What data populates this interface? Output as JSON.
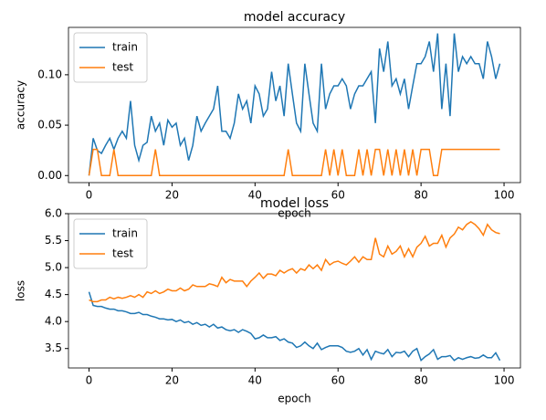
{
  "chart_data": [
    {
      "type": "line",
      "title": "model accuracy",
      "xlabel": "epoch",
      "ylabel": "accuracy",
      "x": [
        0,
        1,
        2,
        3,
        4,
        5,
        6,
        7,
        8,
        9,
        10,
        11,
        12,
        13,
        14,
        15,
        16,
        17,
        18,
        19,
        20,
        21,
        22,
        23,
        24,
        25,
        26,
        27,
        28,
        29,
        30,
        31,
        32,
        33,
        34,
        35,
        36,
        37,
        38,
        39,
        40,
        41,
        42,
        43,
        44,
        45,
        46,
        47,
        48,
        49,
        50,
        51,
        52,
        53,
        54,
        55,
        56,
        57,
        58,
        59,
        60,
        61,
        62,
        63,
        64,
        65,
        66,
        67,
        68,
        69,
        70,
        71,
        72,
        73,
        74,
        75,
        76,
        77,
        78,
        79,
        80,
        81,
        82,
        83,
        84,
        85,
        86,
        87,
        88,
        89,
        90,
        91,
        92,
        93,
        94,
        95,
        96,
        97,
        98,
        99
      ],
      "series": [
        {
          "name": "train",
          "color": "#1f77b4",
          "values": [
            0,
            0.037,
            0.025,
            0.022,
            0.03,
            0.037,
            0.026,
            0.037,
            0.044,
            0.037,
            0.074,
            0.03,
            0.015,
            0.03,
            0.033,
            0.059,
            0.044,
            0.052,
            0.03,
            0.055,
            0.048,
            0.052,
            0.03,
            0.037,
            0.015,
            0.03,
            0.059,
            0.044,
            0.052,
            0.059,
            0.066,
            0.089,
            0.044,
            0.044,
            0.037,
            0.052,
            0.081,
            0.066,
            0.074,
            0.052,
            0.089,
            0.081,
            0.059,
            0.066,
            0.103,
            0.074,
            0.089,
            0.059,
            0.111,
            0.081,
            0.052,
            0.044,
            0.111,
            0.081,
            0.052,
            0.044,
            0.111,
            0.066,
            0.081,
            0.089,
            0.089,
            0.096,
            0.089,
            0.066,
            0.081,
            0.089,
            0.089,
            0.096,
            0.103,
            0.052,
            0.126,
            0.103,
            0.133,
            0.089,
            0.096,
            0.081,
            0.096,
            0.066,
            0.089,
            0.111,
            0.111,
            0.118,
            0.133,
            0.103,
            0.141,
            0.066,
            0.111,
            0.059,
            0.141,
            0.103,
            0.118,
            0.111,
            0.118,
            0.111,
            0.111,
            0.096,
            0.133,
            0.118,
            0.096,
            0.111
          ]
        },
        {
          "name": "test",
          "color": "#ff7f0e",
          "values": [
            0,
            0.026,
            0.026,
            0,
            0,
            0,
            0.026,
            0,
            0,
            0,
            0,
            0,
            0,
            0,
            0,
            0,
            0.026,
            0,
            0,
            0,
            0,
            0,
            0,
            0,
            0,
            0,
            0,
            0,
            0,
            0,
            0,
            0,
            0,
            0,
            0,
            0,
            0,
            0,
            0,
            0,
            0,
            0,
            0,
            0,
            0,
            0,
            0,
            0,
            0.026,
            0,
            0,
            0,
            0,
            0,
            0,
            0,
            0,
            0.026,
            0,
            0.026,
            0,
            0.026,
            0,
            0,
            0,
            0.026,
            0,
            0.026,
            0,
            0.026,
            0.026,
            0,
            0.026,
            0,
            0.026,
            0,
            0.026,
            0,
            0.026,
            0,
            0.026,
            0.026,
            0.026,
            0,
            0,
            0.026,
            0.026,
            0.026,
            0.026,
            0.026,
            0.026,
            0.026,
            0.026,
            0.026,
            0.026,
            0.026,
            0.026,
            0.026,
            0.026,
            0.026
          ]
        }
      ],
      "xlim": [
        -4.95,
        103.95
      ],
      "xticks": [
        0,
        20,
        40,
        60,
        80,
        100
      ],
      "ylim": [
        -0.007,
        0.147
      ],
      "yticks": [
        {
          "value": 0,
          "label": "0.00"
        },
        {
          "value": 0.05,
          "label": "0.05"
        },
        {
          "value": 0.1,
          "label": "0.10"
        }
      ],
      "legend": "upper left"
    },
    {
      "type": "line",
      "title": "model loss",
      "xlabel": "epoch",
      "ylabel": "loss",
      "x": [
        0,
        1,
        2,
        3,
        4,
        5,
        6,
        7,
        8,
        9,
        10,
        11,
        12,
        13,
        14,
        15,
        16,
        17,
        18,
        19,
        20,
        21,
        22,
        23,
        24,
        25,
        26,
        27,
        28,
        29,
        30,
        31,
        32,
        33,
        34,
        35,
        36,
        37,
        38,
        39,
        40,
        41,
        42,
        43,
        44,
        45,
        46,
        47,
        48,
        49,
        50,
        51,
        52,
        53,
        54,
        55,
        56,
        57,
        58,
        59,
        60,
        61,
        62,
        63,
        64,
        65,
        66,
        67,
        68,
        69,
        70,
        71,
        72,
        73,
        74,
        75,
        76,
        77,
        78,
        79,
        80,
        81,
        82,
        83,
        84,
        85,
        86,
        87,
        88,
        89,
        90,
        91,
        92,
        93,
        94,
        95,
        96,
        97,
        98,
        99
      ],
      "series": [
        {
          "name": "train",
          "color": "#1f77b4",
          "values": [
            4.55,
            4.3,
            4.28,
            4.28,
            4.25,
            4.23,
            4.23,
            4.2,
            4.2,
            4.18,
            4.15,
            4.15,
            4.17,
            4.13,
            4.13,
            4.1,
            4.08,
            4.05,
            4.05,
            4.03,
            4.04,
            4.0,
            4.03,
            3.98,
            4.0,
            3.95,
            3.98,
            3.93,
            3.95,
            3.9,
            3.95,
            3.88,
            3.9,
            3.85,
            3.83,
            3.85,
            3.8,
            3.85,
            3.82,
            3.78,
            3.68,
            3.7,
            3.75,
            3.7,
            3.7,
            3.72,
            3.65,
            3.68,
            3.62,
            3.6,
            3.52,
            3.55,
            3.62,
            3.55,
            3.5,
            3.6,
            3.48,
            3.52,
            3.55,
            3.55,
            3.55,
            3.52,
            3.45,
            3.43,
            3.45,
            3.5,
            3.38,
            3.48,
            3.3,
            3.45,
            3.42,
            3.4,
            3.48,
            3.35,
            3.43,
            3.42,
            3.45,
            3.35,
            3.45,
            3.5,
            3.28,
            3.35,
            3.4,
            3.48,
            3.3,
            3.35,
            3.35,
            3.37,
            3.28,
            3.33,
            3.3,
            3.33,
            3.35,
            3.32,
            3.33,
            3.38,
            3.33,
            3.33,
            3.42,
            3.28
          ]
        },
        {
          "name": "test",
          "color": "#ff7f0e",
          "values": [
            4.4,
            4.37,
            4.37,
            4.4,
            4.4,
            4.45,
            4.42,
            4.45,
            4.43,
            4.45,
            4.48,
            4.45,
            4.5,
            4.45,
            4.55,
            4.52,
            4.57,
            4.52,
            4.55,
            4.6,
            4.57,
            4.57,
            4.62,
            4.57,
            4.6,
            4.68,
            4.65,
            4.65,
            4.65,
            4.7,
            4.68,
            4.65,
            4.82,
            4.72,
            4.78,
            4.75,
            4.75,
            4.75,
            4.65,
            4.75,
            4.82,
            4.9,
            4.8,
            4.88,
            4.88,
            4.85,
            4.95,
            4.9,
            4.95,
            4.98,
            4.9,
            4.98,
            4.95,
            5.05,
            4.98,
            5.05,
            4.95,
            5.15,
            5.05,
            5.1,
            5.12,
            5.08,
            5.05,
            5.12,
            5.2,
            5.1,
            5.2,
            5.15,
            5.15,
            5.55,
            5.25,
            5.2,
            5.4,
            5.25,
            5.3,
            5.4,
            5.2,
            5.35,
            5.2,
            5.38,
            5.45,
            5.58,
            5.4,
            5.45,
            5.45,
            5.6,
            5.38,
            5.55,
            5.62,
            5.75,
            5.7,
            5.8,
            5.85,
            5.8,
            5.72,
            5.6,
            5.8,
            5.7,
            5.65,
            5.63
          ]
        }
      ],
      "xlim": [
        -4.95,
        103.95
      ],
      "xticks": [
        0,
        20,
        40,
        60,
        80,
        100
      ],
      "ylim": [
        3.14,
        6.0
      ],
      "yticks": [
        {
          "value": 3.5,
          "label": "3.5"
        },
        {
          "value": 4.0,
          "label": "4.0"
        },
        {
          "value": 4.5,
          "label": "4.5"
        },
        {
          "value": 5.0,
          "label": "5.0"
        },
        {
          "value": 5.5,
          "label": "5.5"
        },
        {
          "value": 6.0,
          "label": "6.0"
        }
      ],
      "legend": "upper left"
    }
  ]
}
